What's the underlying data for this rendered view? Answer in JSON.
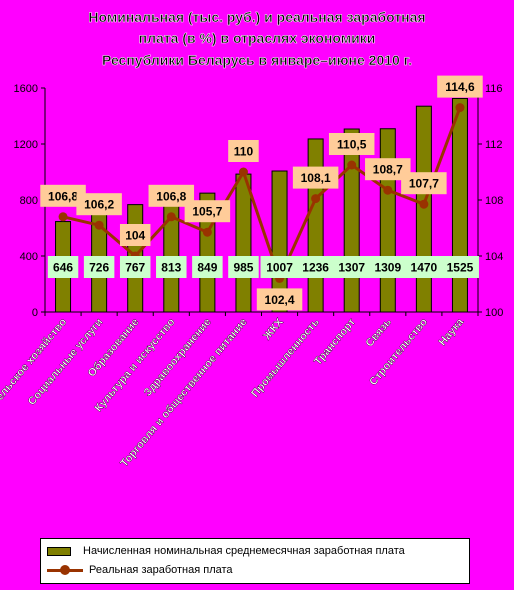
{
  "chart_data": {
    "type": "bar",
    "title_lines": [
      "Номинальная (тыс. руб.) и реальная заработная",
      "плата (в %) в отраслях экономики",
      "Республики Беларусь в январе–июне 2010 г."
    ],
    "categories": [
      "Сельское хозяйство",
      "Социальные услуги",
      "Образование",
      "Культура и искусство",
      "Здравоохранение",
      "Торговля и общественное питание",
      "ЖКХ",
      "Промышленность",
      "Транспорт",
      "Связь",
      "Строительство",
      "Наука"
    ],
    "series": [
      {
        "name": "Начисленная номинальная среднемесячная заработная плата",
        "type": "bar",
        "axis": "left",
        "color": "#808000",
        "values": [
          646,
          726,
          767,
          813,
          849,
          985,
          1007,
          1236,
          1307,
          1309,
          1470,
          1525
        ],
        "labels": [
          "646",
          "726",
          "767",
          "813",
          "849",
          "985",
          "1007",
          "1236",
          "1307",
          "1309",
          "1470",
          "1525"
        ]
      },
      {
        "name": "Реальная заработная плата",
        "type": "line",
        "axis": "right",
        "color": "#993300",
        "values": [
          106.8,
          106.2,
          104,
          106.8,
          105.7,
          110,
          102.4,
          108.1,
          110.5,
          108.7,
          107.7,
          114.6
        ],
        "labels": [
          "106,8",
          "106,2",
          "104",
          "106,8",
          "105,7",
          "110",
          "102,4",
          "108,1",
          "110,5",
          "108,7",
          "107,7",
          "114,6"
        ]
      }
    ],
    "y_left": {
      "min": 0,
      "max": 1600,
      "ticks": [
        "0",
        "400",
        "800",
        "1200",
        "1600"
      ]
    },
    "y_right": {
      "min": 100,
      "max": 116,
      "ticks": [
        "100",
        "104",
        "108",
        "112",
        "116"
      ]
    },
    "colors": {
      "background": "#ff00ff",
      "bar": "#808000",
      "line": "#993300",
      "bar_label_bg": "#ccffcc",
      "line_label_bg": "#ffcc99"
    },
    "grid": false,
    "legend_position": "bottom"
  }
}
